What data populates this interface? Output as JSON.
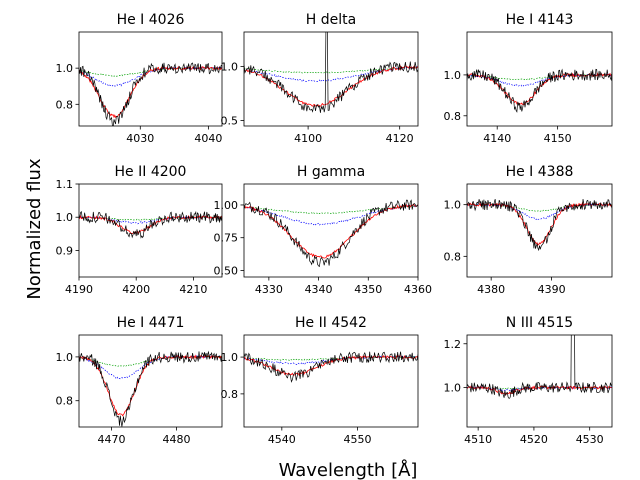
{
  "figure": {
    "xlabel": "Wavelength [$\\AA$]",
    "xlabel_display": "Wavelength [Å]",
    "ylabel": "Normalized flux"
  },
  "colors": {
    "observed": "#000000",
    "model_red": "#ff0000",
    "model_blue": "#0000ff",
    "model_green": "#00a000"
  },
  "chart_data": [
    {
      "type": "line",
      "title": "He I 4026",
      "center": 4026.2,
      "depth": 0.28,
      "width": 2.2,
      "xlim": [
        4021,
        4042
      ],
      "ylim": [
        0.68,
        1.2
      ],
      "xticks": [
        4030,
        4040
      ],
      "xtick_labels": [
        "4030",
        "4040"
      ],
      "yticks": [
        0.8,
        1.0
      ],
      "ytick_labels": [
        "0.8",
        "1.0"
      ],
      "series": [
        "observed",
        "model_red",
        "model_blue",
        "model_green"
      ]
    },
    {
      "type": "line",
      "title": "H delta",
      "center": 4101.7,
      "depth": 0.38,
      "width": 7.0,
      "xlim": [
        4086,
        4124
      ],
      "ylim": [
        0.45,
        1.32
      ],
      "xticks": [
        4100,
        4120
      ],
      "xtick_labels": [
        "4100",
        "4120"
      ],
      "yticks": [
        0.5,
        1.0
      ],
      "ytick_labels": [
        "0.5",
        "1.0"
      ],
      "series": [
        "observed",
        "model_red",
        "model_blue",
        "model_green"
      ]
    },
    {
      "type": "line",
      "title": "He I 4143",
      "center": 4143.8,
      "depth": 0.15,
      "width": 2.5,
      "xlim": [
        4135,
        4159
      ],
      "ylim": [
        0.75,
        1.21
      ],
      "xticks": [
        4140,
        4150
      ],
      "xtick_labels": [
        "4140",
        "4150"
      ],
      "yticks": [
        0.8,
        1.0
      ],
      "ytick_labels": [
        "0.8",
        "1.0"
      ],
      "series": [
        "observed",
        "model_red",
        "model_blue",
        "model_green"
      ]
    },
    {
      "type": "line",
      "title": "He II 4200",
      "center": 4199.8,
      "depth": 0.05,
      "width": 2.5,
      "xlim": [
        4190,
        4215
      ],
      "ylim": [
        0.82,
        1.1
      ],
      "xticks": [
        4190,
        4200,
        4210
      ],
      "xtick_labels": [
        "4190",
        "4200",
        "4210"
      ],
      "yticks": [
        0.9,
        1.0,
        1.1
      ],
      "ytick_labels": [
        "0.9",
        "1.0",
        "1.1"
      ],
      "series": [
        "observed",
        "model_red",
        "model_blue",
        "model_green"
      ]
    },
    {
      "type": "line",
      "title": "H gamma",
      "center": 4340.5,
      "depth": 0.42,
      "width": 6.0,
      "xlim": [
        4325,
        4360
      ],
      "ylim": [
        0.45,
        1.16
      ],
      "xticks": [
        4330,
        4340,
        4350,
        4360
      ],
      "xtick_labels": [
        "4330",
        "4340",
        "4350",
        "4360"
      ],
      "yticks": [
        0.5,
        0.75,
        1.0
      ],
      "ytick_labels": [
        "0.50",
        "0.75",
        "1.00"
      ],
      "series": [
        "observed",
        "model_red",
        "model_blue",
        "model_green"
      ]
    },
    {
      "type": "line",
      "title": "He I 4388",
      "center": 4387.9,
      "depth": 0.16,
      "width": 2.0,
      "xlim": [
        4376,
        4400
      ],
      "ylim": [
        0.72,
        1.08
      ],
      "xticks": [
        4380,
        4390
      ],
      "xtick_labels": [
        "4380",
        "4390"
      ],
      "yticks": [
        0.8,
        1.0
      ],
      "ytick_labels": [
        "0.8",
        "1.0"
      ],
      "series": [
        "observed",
        "model_red",
        "model_blue",
        "model_green"
      ]
    },
    {
      "type": "line",
      "title": "He I 4471",
      "center": 4471.5,
      "depth": 0.28,
      "width": 2.0,
      "xlim": [
        4465,
        4487
      ],
      "ylim": [
        0.68,
        1.1
      ],
      "xticks": [
        4470,
        4480
      ],
      "xtick_labels": [
        "4470",
        "4480"
      ],
      "yticks": [
        0.8,
        1.0
      ],
      "ytick_labels": [
        "0.8",
        "1.0"
      ],
      "series": [
        "observed",
        "model_red",
        "model_blue",
        "model_green"
      ]
    },
    {
      "type": "line",
      "title": "He II 4542",
      "center": 4541.6,
      "depth": 0.1,
      "width": 3.0,
      "xlim": [
        4535,
        4558
      ],
      "ylim": [
        0.62,
        1.12
      ],
      "xticks": [
        4540,
        4550
      ],
      "xtick_labels": [
        "4540",
        "4550"
      ],
      "yticks": [
        0.8,
        1.0
      ],
      "ytick_labels": [
        "0.8",
        "1.0"
      ],
      "series": [
        "observed",
        "model_red",
        "model_blue",
        "model_green"
      ]
    },
    {
      "type": "line",
      "title": "N III 4515",
      "center": 4515.0,
      "depth": 0.03,
      "width": 1.5,
      "xlim": [
        4508,
        4534
      ],
      "ylim": [
        0.82,
        1.24
      ],
      "xticks": [
        4510,
        4520,
        4530
      ],
      "xtick_labels": [
        "4510",
        "4520",
        "4530"
      ],
      "yticks": [
        1.0,
        1.2
      ],
      "ytick_labels": [
        "1.0",
        "1.2"
      ],
      "series": [
        "observed",
        "model_red",
        "model_blue",
        "model_green"
      ]
    }
  ]
}
